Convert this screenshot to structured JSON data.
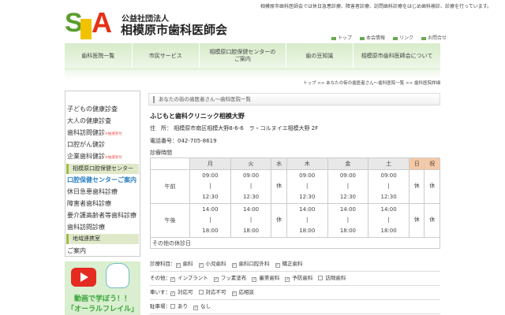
{
  "header": {
    "tagline": "相模原市歯科医師会では休日急患診療、障害者診療、訪問歯科診療をはじめ歯科検診、診療を行っています。",
    "logo_text": "SDA Sagamihara Dental Association",
    "org_sub": "公益社団法人",
    "org_name": "相模原市歯科医師会",
    "util_links": [
      "トップ",
      "本会情報",
      "リンク",
      "お問合せ"
    ]
  },
  "nav": [
    "歯科医院一覧",
    "市民サービス",
    "相模原口腔保健センターのご案内",
    "歯の豆知識",
    "相模原市歯科医師会について"
  ],
  "breadcrumb": "トップ >> あなたの街の歯医者さん〜歯科医院一覧 >> 歯科医院詳細",
  "sidebar": {
    "items": [
      {
        "label": "子どもの健康診査"
      },
      {
        "label": "大人の健康診査"
      },
      {
        "label": "歯科訪問健診",
        "note": "※抽選受付"
      },
      {
        "label": "口腔がん健診"
      },
      {
        "label": "企業歯科健診",
        "note": "※抽選受付"
      }
    ],
    "header1": "相模原口腔保健センター",
    "items2": [
      {
        "label": "口腔保健センターご案内"
      },
      {
        "label": "休日急患歯科診療"
      },
      {
        "label": "障害者歯科診療"
      },
      {
        "label": "要介護高齢者等歯科診療"
      },
      {
        "label": "歯科訪問診療"
      }
    ],
    "header2": "地域連携室",
    "items3": [
      {
        "label": "ご案内"
      }
    ],
    "banner": {
      "line1": "動画で学ぼう！！",
      "line2": "「オーラルフレイル」"
    }
  },
  "main": {
    "page_title": "あなたの街の歯医者さん〜歯科医院一覧",
    "clinic_name": "ふじもと歯科クリニック相模大野",
    "address_label": "住　所：",
    "address": "相模原市南区相模大野8-6-6　ラ・コルヌイエ相模大野 2F",
    "phone_label": "電話番号：",
    "phone": "042-705-8619",
    "hours_label": "診療時間",
    "days": [
      "月",
      "火",
      "水",
      "木",
      "金",
      "土",
      "日",
      "祝"
    ],
    "rows": [
      {
        "label": "午前",
        "cells": [
          "09:00\n|\n12:30",
          "09:00\n|\n12:30",
          "休",
          "09:00\n|\n12:30",
          "09:00\n|\n12:30",
          "09:00\n|\n12:30",
          "休",
          "休"
        ]
      },
      {
        "label": "午後",
        "cells": [
          "14:00\n|\n18:00",
          "14:00\n|\n18:00",
          "休",
          "14:00\n|\n18:00",
          "14:00\n|\n18:00",
          "14:00\n|\n18:00",
          "休",
          "休"
        ]
      }
    ],
    "other_holidays": "その他の休診日",
    "attributes": [
      {
        "label": "診療科目：",
        "options": [
          {
            "t": "歯科",
            "c": true
          },
          {
            "t": "小児歯科",
            "c": true
          },
          {
            "t": "歯科口腔外科",
            "c": true
          },
          {
            "t": "矯正歯科",
            "c": true
          }
        ]
      },
      {
        "label": "その他：",
        "options": [
          {
            "t": "インプラント",
            "c": true
          },
          {
            "t": "フッ素塗布",
            "c": true
          },
          {
            "t": "審美歯科",
            "c": true
          },
          {
            "t": "予防歯科",
            "c": true
          },
          {
            "t": "訪問歯科",
            "c": false
          }
        ]
      },
      {
        "label": "車いす：",
        "options": [
          {
            "t": "対応可",
            "c": true
          },
          {
            "t": "対応不可",
            "c": false
          },
          {
            "t": "応相談",
            "c": true
          }
        ]
      },
      {
        "label": "駐車場：",
        "options": [
          {
            "t": "あり",
            "c": false
          },
          {
            "t": "なし",
            "c": true
          }
        ]
      }
    ]
  },
  "colors": {
    "nav_green": "#d7ebc9",
    "holiday_header": "#f6c9a6",
    "link_blue": "#2a7fc4"
  }
}
